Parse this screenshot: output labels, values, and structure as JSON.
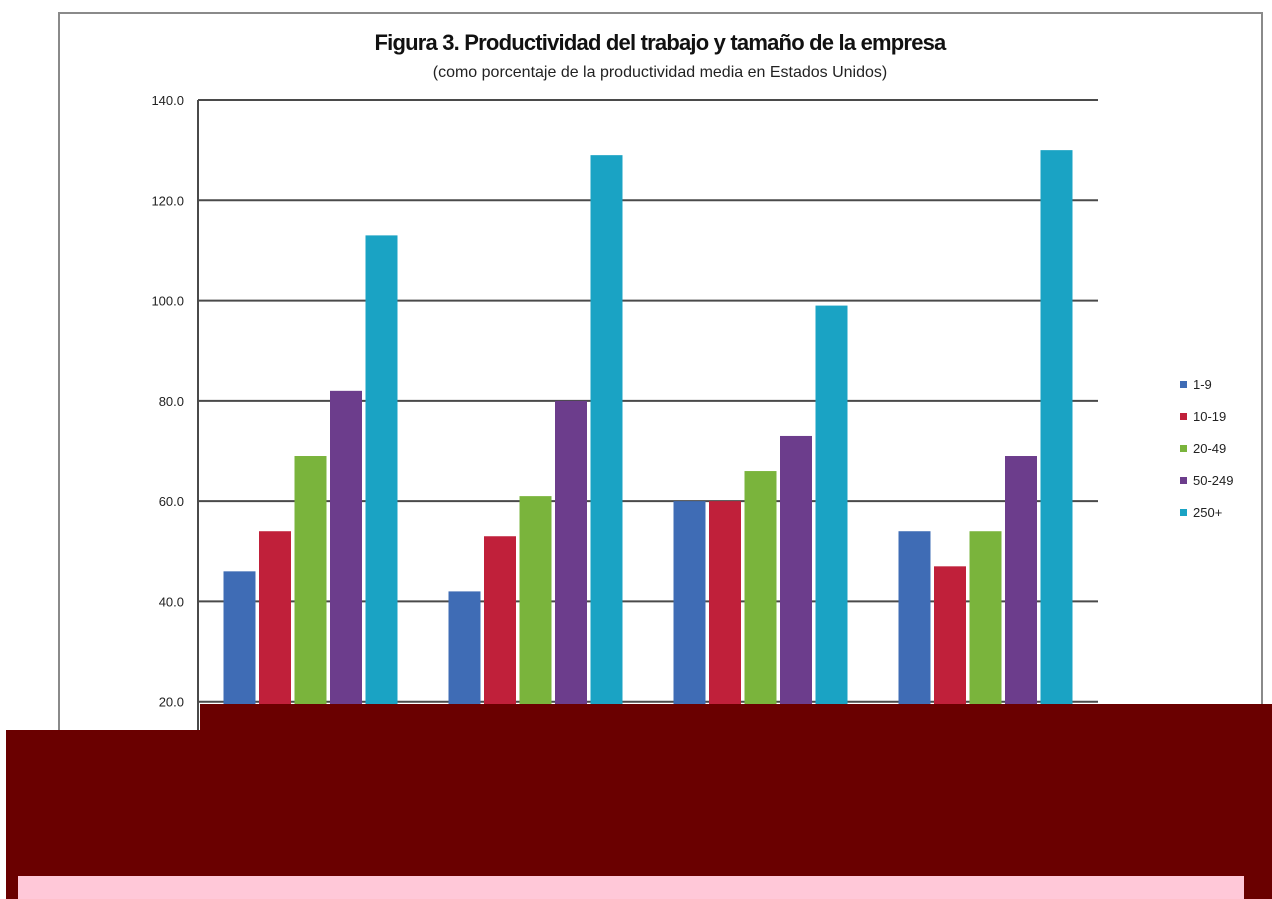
{
  "chart_data": {
    "type": "bar",
    "title": "Figura 3. Productividad del trabajo y tamaño de la empresa",
    "subtitle": "(como porcentaje de la productividad media en Estados Unidos)",
    "xlabel": "",
    "ylabel": "",
    "ylim": [
      0,
      140
    ],
    "yticks": [
      "20.0",
      "40.0",
      "60.0",
      "80.0",
      "100.0",
      "120.0",
      "140.0"
    ],
    "ytick_values": [
      20,
      40,
      60,
      80,
      100,
      120,
      140
    ],
    "categories": [
      "",
      "",
      "",
      ""
    ],
    "series": [
      {
        "name": "1-9",
        "color": "#3f6cb5",
        "values": [
          46,
          42,
          60,
          54
        ]
      },
      {
        "name": "10-19",
        "color": "#c0203a",
        "values": [
          54,
          53,
          60,
          47
        ]
      },
      {
        "name": "20-49",
        "color": "#7ab43c",
        "values": [
          69,
          61,
          66,
          54
        ]
      },
      {
        "name": "50-249",
        "color": "#6c3d8c",
        "values": [
          82,
          80,
          73,
          69
        ]
      },
      {
        "name": "250+",
        "color": "#1aa3c4",
        "values": [
          113,
          129,
          99,
          130
        ]
      }
    ],
    "grid": true,
    "legend_position": "right"
  }
}
